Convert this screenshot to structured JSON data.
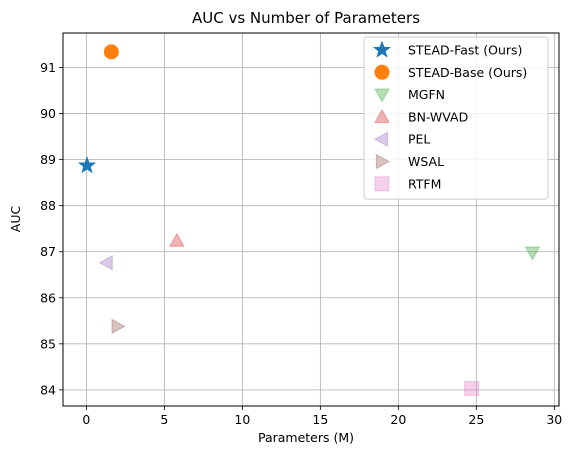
{
  "chart_data": {
    "type": "scatter",
    "title": "AUC vs Number of Parameters",
    "xlabel": "Parameters (M)",
    "ylabel": "AUC",
    "xlim": [
      -1.5,
      30.3
    ],
    "ylim": [
      83.65,
      91.75
    ],
    "xticks": [
      0,
      5,
      10,
      15,
      20,
      25,
      30
    ],
    "yticks": [
      84,
      85,
      86,
      87,
      88,
      89,
      90,
      91
    ],
    "grid": true,
    "legend_position": "top-right",
    "series": [
      {
        "name": "STEAD-Fast (Ours)",
        "marker": "star",
        "color": "#1f77b4",
        "alpha": 1.0,
        "x": [
          0.04
        ],
        "y": [
          88.87
        ]
      },
      {
        "name": "STEAD-Base (Ours)",
        "marker": "circle",
        "color": "#ff7f0e",
        "alpha": 1.0,
        "x": [
          1.6
        ],
        "y": [
          91.34
        ]
      },
      {
        "name": "MGFN",
        "marker": "triangle-down",
        "color": "#2ca02c",
        "alpha": 0.35,
        "x": [
          28.6
        ],
        "y": [
          86.98
        ]
      },
      {
        "name": "BN-WVAD",
        "marker": "triangle-up",
        "color": "#d62728",
        "alpha": 0.35,
        "x": [
          5.8
        ],
        "y": [
          87.24
        ]
      },
      {
        "name": "PEL",
        "marker": "triangle-left",
        "color": "#9467bd",
        "alpha": 0.35,
        "x": [
          1.3
        ],
        "y": [
          86.76
        ]
      },
      {
        "name": "WSAL",
        "marker": "triangle-right",
        "color": "#8c564b",
        "alpha": 0.35,
        "x": [
          2.0
        ],
        "y": [
          85.38
        ]
      },
      {
        "name": "RTFM",
        "marker": "square",
        "color": "#e377c2",
        "alpha": 0.35,
        "x": [
          24.7
        ],
        "y": [
          84.03
        ]
      }
    ]
  }
}
